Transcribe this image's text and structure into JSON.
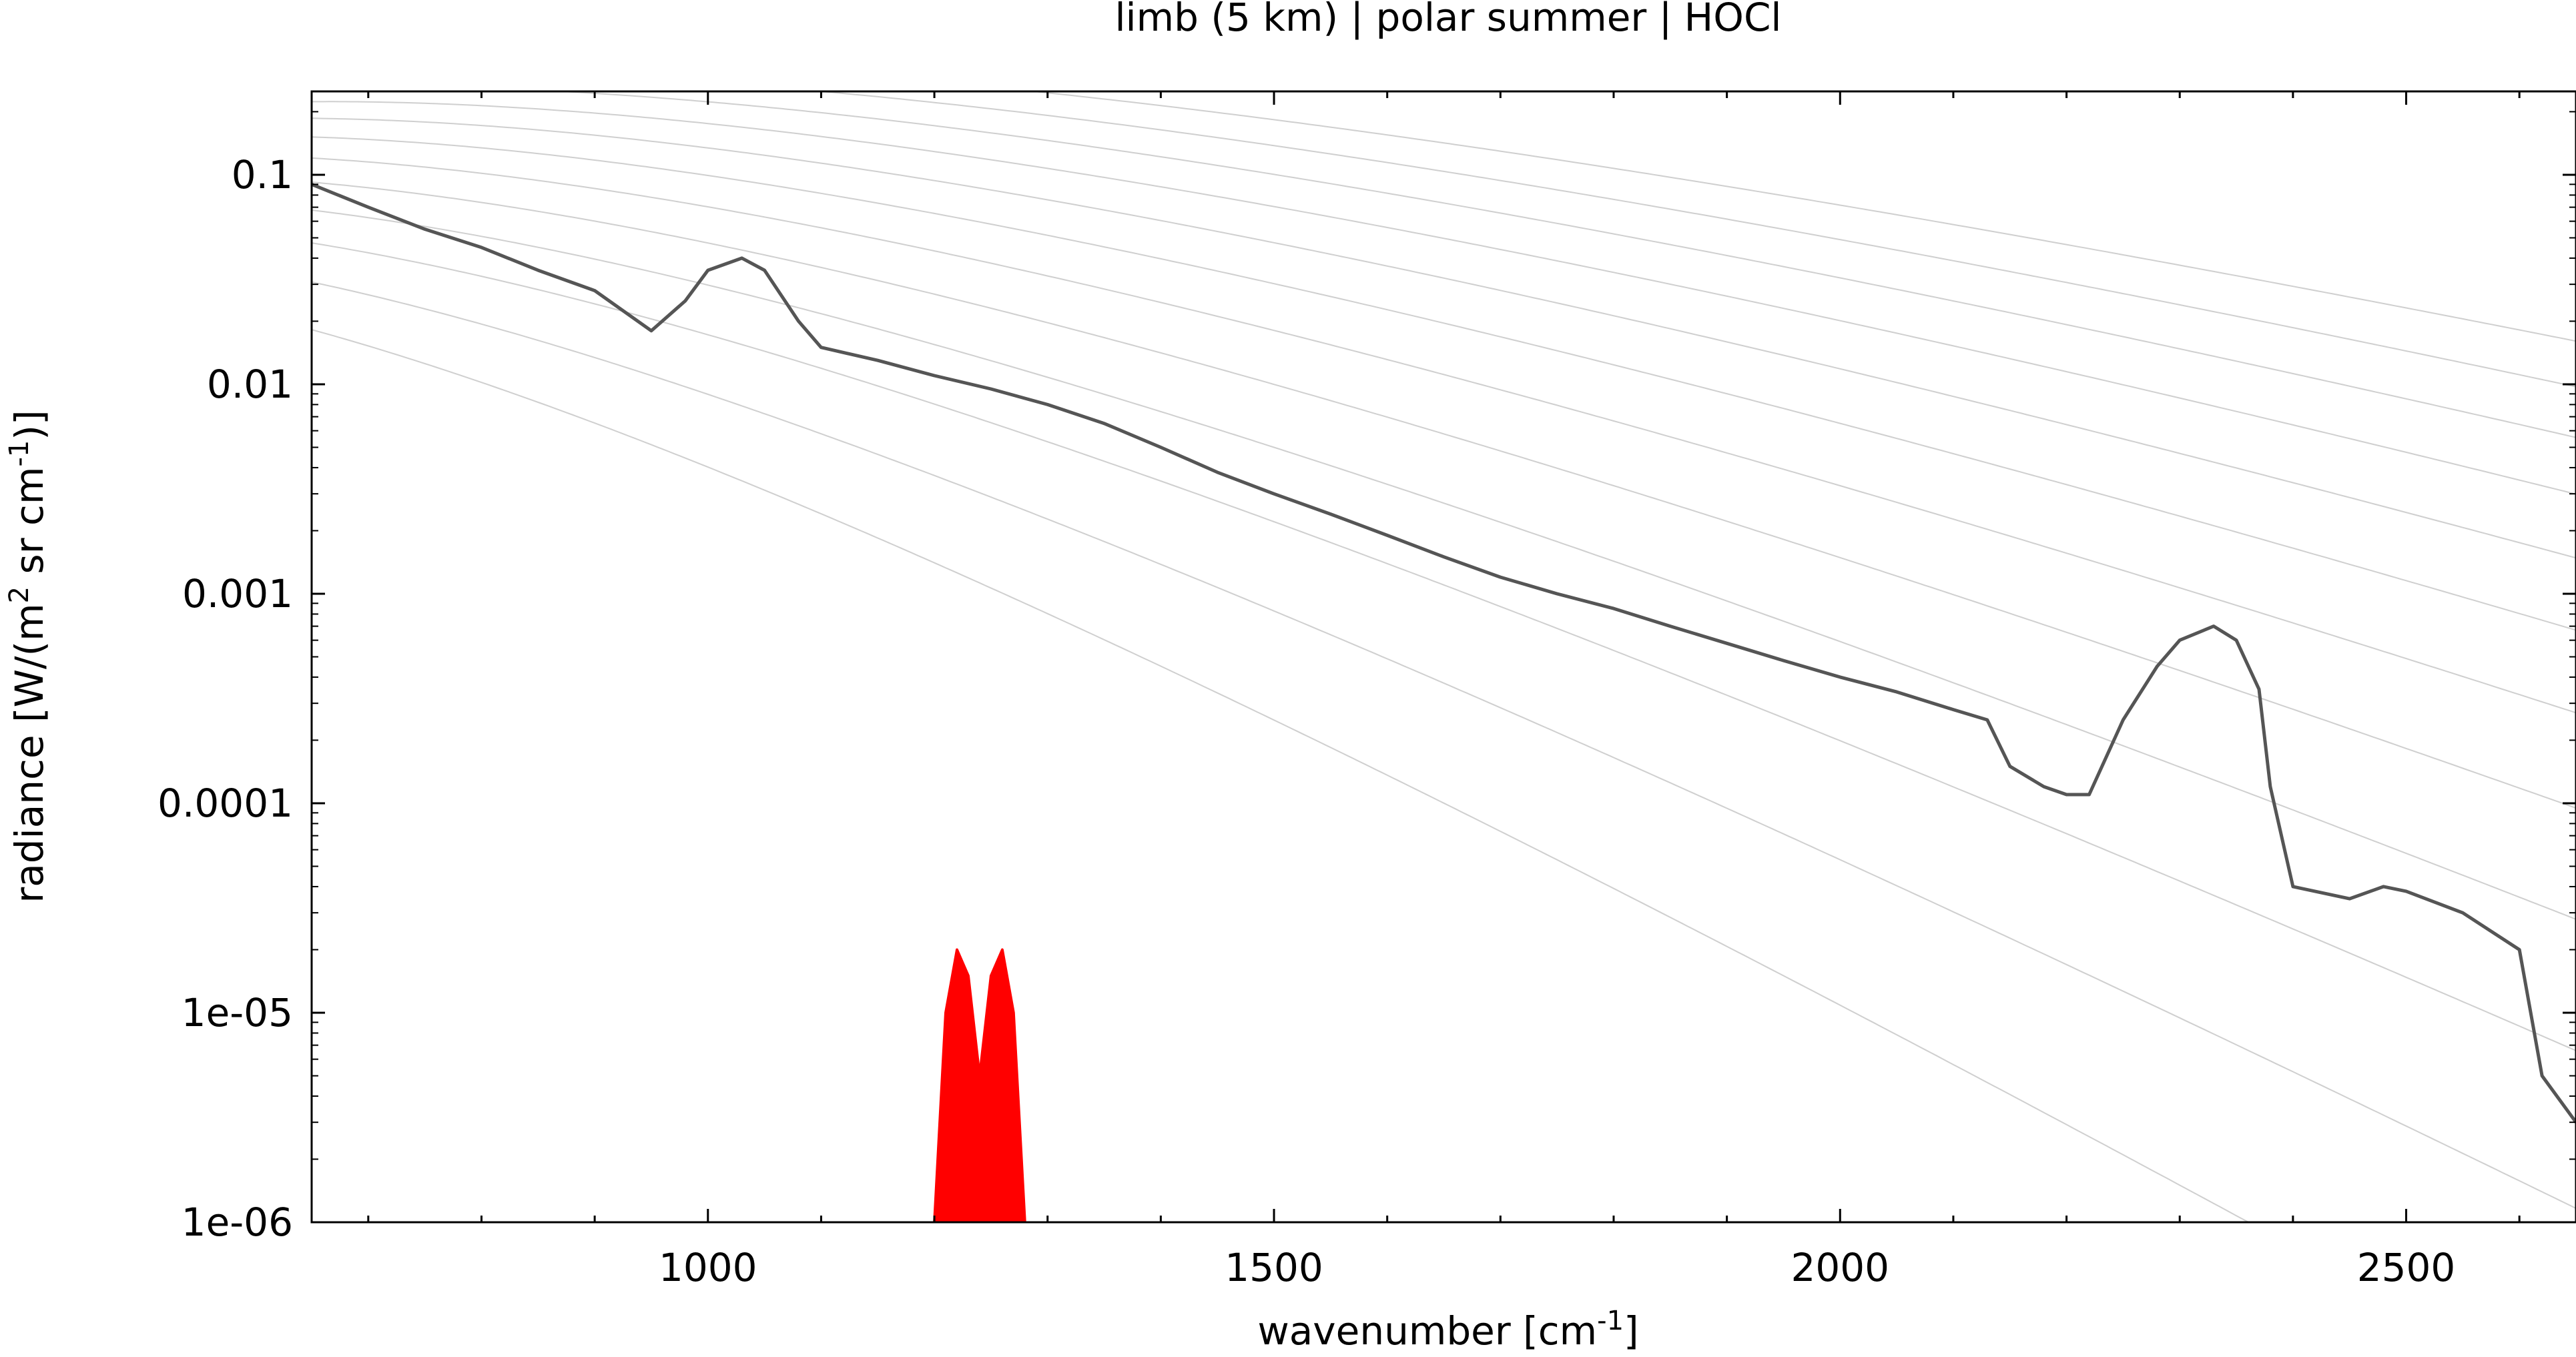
{
  "chart_data": {
    "type": "line",
    "title": "limb (5 km) | polar summer | HOCl",
    "xlabel": {
      "main": "wavenumber [cm",
      "sup": "-1",
      "end": "]"
    },
    "ylabel": {
      "main": "radiance [W/(m",
      "sup1": "2",
      "mid": " sr cm",
      "sup2": "-1",
      "end": ")]"
    },
    "x_scale": "linear",
    "y_scale": "log",
    "xlim": [
      650,
      2650
    ],
    "ylim": [
      1e-06,
      0.25
    ],
    "x_ticks": [
      1000,
      1500,
      2000,
      2500
    ],
    "x_tick_labels": [
      "1000",
      "1500",
      "2000",
      "2500"
    ],
    "y_ticks": [
      0.1,
      0.01,
      0.001,
      0.0001,
      1e-05,
      1e-06
    ],
    "y_tick_labels": [
      "0.1",
      "0.01",
      "0.001",
      "0.0001",
      "1e-05",
      "1e-06"
    ],
    "grid": false,
    "legend": "none",
    "colors": {
      "spectrum": "#555555",
      "hocl": "#ff0000",
      "planck": "#bbbbbb"
    },
    "planck_curves_temperature_K": [
      180,
      200,
      220,
      240,
      260,
      280,
      300,
      320,
      340,
      360,
      380,
      400
    ],
    "series": [
      {
        "x": [
          650,
          700,
          750,
          800,
          850,
          900,
          950,
          980,
          1000,
          1030,
          1050,
          1080,
          1100,
          1150,
          1200,
          1250,
          1300,
          1350,
          1400,
          1450,
          1500,
          1550,
          1600,
          1650,
          1700,
          1750,
          1800,
          1850,
          1900,
          1950,
          2000,
          2050,
          2100,
          2130,
          2150,
          2180,
          2200,
          2220,
          2250,
          2280,
          2300,
          2330,
          2350,
          2370,
          2380,
          2400,
          2450,
          2480,
          2500,
          2550,
          2600,
          2620,
          2650
        ],
        "y": [
          0.09,
          0.07,
          0.055,
          0.045,
          0.035,
          0.028,
          0.018,
          0.025,
          0.035,
          0.04,
          0.035,
          0.02,
          0.015,
          0.013,
          0.011,
          0.0095,
          0.008,
          0.0065,
          0.005,
          0.0038,
          0.003,
          0.0024,
          0.0019,
          0.0015,
          0.0012,
          0.001,
          0.00085,
          0.0007,
          0.00058,
          0.00048,
          0.0004,
          0.00034,
          0.00028,
          0.00025,
          0.00015,
          0.00012,
          0.00011,
          0.00011,
          0.00025,
          0.00045,
          0.0006,
          0.0007,
          0.0006,
          0.00035,
          0.00012,
          4e-05,
          3.5e-05,
          4e-05,
          3.8e-05,
          3e-05,
          2e-05,
          5e-06,
          3e-06
        ]
      },
      {
        "x": [
          1200,
          1210,
          1220,
          1230,
          1240,
          1250,
          1260,
          1270,
          1280
        ],
        "y": [
          1e-06,
          1e-05,
          2e-05,
          1.5e-05,
          5e-06,
          1.5e-05,
          2e-05,
          1e-05,
          1e-06
        ]
      }
    ]
  }
}
